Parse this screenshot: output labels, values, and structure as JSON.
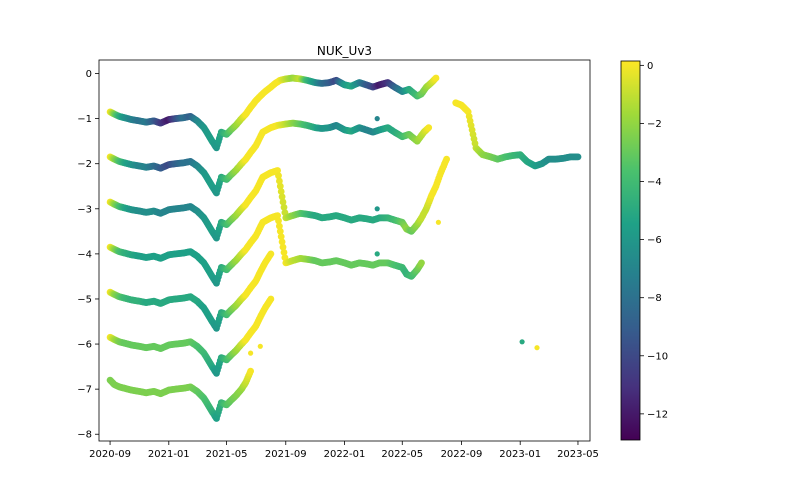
{
  "chart_data": {
    "type": "scatter",
    "title": "NUK_Uv3",
    "xlabel": "",
    "ylabel": "",
    "xlim": [
      "2020-08-09",
      "2023-05-26"
    ],
    "ylim": [
      -8.15,
      0.3
    ],
    "xticks": [
      "2020-09",
      "2021-01",
      "2021-05",
      "2021-09",
      "2022-01",
      "2022-05",
      "2022-09",
      "2023-01",
      "2023-05"
    ],
    "yticks": [
      0,
      -1,
      -2,
      -3,
      -4,
      -5,
      -6,
      -7,
      -8
    ],
    "colormap": "viridis",
    "colorbar": {
      "min": -12.9,
      "max": 0.15,
      "ticks": [
        0,
        -2,
        -4,
        -6,
        -8,
        -10,
        -12
      ]
    },
    "grid": false,
    "legend": "none",
    "series_note_free": true,
    "series": [
      {
        "x": [
          "2020-09-01",
          "2020-09-10",
          "2020-09-20",
          "2020-10-01",
          "2020-10-15",
          "2020-11-01",
          "2020-11-15",
          "2020-12-01",
          "2020-12-15",
          "2021-01-01",
          "2021-01-15",
          "2021-02-01",
          "2021-02-15",
          "2021-03-01",
          "2021-03-15",
          "2021-04-01",
          "2021-04-10",
          "2021-04-20",
          "2021-05-01",
          "2021-05-10",
          "2021-05-20",
          "2021-06-01",
          "2021-06-10",
          "2021-06-20",
          "2021-07-01",
          "2021-07-10",
          "2021-07-20",
          "2021-08-01",
          "2021-08-10",
          "2021-08-20",
          "2021-09-01",
          "2021-09-15",
          "2021-10-01",
          "2021-10-15",
          "2021-11-01",
          "2021-11-15",
          "2021-12-01",
          "2021-12-15",
          "2022-01-01",
          "2022-01-15",
          "2022-02-01",
          "2022-02-15",
          "2022-03-01",
          "2022-03-15",
          "2022-04-01",
          "2022-04-15",
          "2022-05-01",
          "2022-05-15",
          "2022-06-01",
          "2022-06-10",
          "2022-06-20",
          "2022-07-01",
          "2022-07-10"
        ],
        "y": [
          -0.85,
          -0.9,
          -0.95,
          -0.98,
          -1.02,
          -1.05,
          -1.08,
          -1.05,
          -1.1,
          -1.02,
          -1.0,
          -0.98,
          -0.95,
          -1.05,
          -1.2,
          -1.5,
          -1.65,
          -1.3,
          -1.35,
          -1.25,
          -1.15,
          -1.0,
          -0.9,
          -0.75,
          -0.6,
          -0.5,
          -0.4,
          -0.3,
          -0.22,
          -0.15,
          -0.12,
          -0.1,
          -0.12,
          -0.15,
          -0.2,
          -0.22,
          -0.2,
          -0.15,
          -0.25,
          -0.28,
          -0.2,
          -0.25,
          -0.3,
          -0.25,
          -0.2,
          -0.3,
          -0.4,
          -0.35,
          -0.5,
          -0.45,
          -0.3,
          -0.2,
          -0.1
        ],
        "c": [
          0,
          -2.5,
          -4.5,
          -6,
          -7,
          -8,
          -7.5,
          -9,
          -10.5,
          -12,
          -10,
          -8,
          -9,
          -7,
          -6,
          -5.5,
          -6,
          -5,
          -4,
          -3,
          -2,
          -1,
          0,
          0,
          0,
          0,
          0,
          0,
          0,
          0,
          -1,
          -2,
          -1,
          -4,
          -6,
          -8,
          -9,
          -10,
          -6,
          -5,
          -7,
          -9,
          -10,
          -12,
          -11,
          -9,
          -7,
          -5,
          -4,
          -3,
          -2,
          -1,
          0
        ]
      },
      {
        "x": [
          "2020-09-01",
          "2020-09-10",
          "2020-09-20",
          "2020-10-01",
          "2020-10-15",
          "2020-11-01",
          "2020-11-15",
          "2020-12-01",
          "2020-12-15",
          "2021-01-01",
          "2021-01-15",
          "2021-02-01",
          "2021-02-15",
          "2021-03-01",
          "2021-03-15",
          "2021-04-01",
          "2021-04-10",
          "2021-04-20",
          "2021-05-01",
          "2021-05-10",
          "2021-05-20",
          "2021-06-01",
          "2021-06-10",
          "2021-06-20",
          "2021-07-01",
          "2021-07-15",
          "2021-08-01",
          "2021-08-15",
          "2021-09-01",
          "2021-09-15",
          "2021-10-01",
          "2021-10-15",
          "2021-11-01",
          "2021-11-15",
          "2021-12-01",
          "2021-12-15",
          "2022-01-01",
          "2022-01-15",
          "2022-02-01",
          "2022-02-15",
          "2022-03-01",
          "2022-03-15",
          "2022-04-01",
          "2022-04-15",
          "2022-05-01",
          "2022-05-15",
          "2022-06-01",
          "2022-06-15",
          "2022-06-25"
        ],
        "y": [
          -1.85,
          -1.9,
          -1.95,
          -1.98,
          -2.02,
          -2.05,
          -2.08,
          -2.05,
          -2.1,
          -2.02,
          -2.0,
          -1.98,
          -1.95,
          -2.05,
          -2.2,
          -2.5,
          -2.65,
          -2.3,
          -2.35,
          -2.25,
          -2.15,
          -2.0,
          -1.9,
          -1.75,
          -1.6,
          -1.3,
          -1.2,
          -1.15,
          -1.12,
          -1.1,
          -1.12,
          -1.15,
          -1.2,
          -1.22,
          -1.2,
          -1.15,
          -1.25,
          -1.28,
          -1.2,
          -1.25,
          -1.3,
          -1.25,
          -1.2,
          -1.3,
          -1.4,
          -1.35,
          -1.5,
          -1.3,
          -1.2
        ],
        "c": [
          0,
          -2,
          -3.5,
          -5,
          -6,
          -7,
          -7,
          -8,
          -9,
          -10,
          -9,
          -8,
          -8,
          -7,
          -6,
          -5.5,
          -6,
          -5,
          -4,
          -3,
          -2,
          -1,
          0,
          0,
          0,
          0,
          0,
          0,
          -1,
          -2,
          -3,
          -4,
          -5,
          -6,
          -6,
          -7,
          -6,
          -5,
          -6,
          -7,
          -7,
          -6,
          -5,
          -5,
          -4,
          -3,
          -2,
          -1,
          0
        ]
      },
      {
        "x": [
          "2020-09-01",
          "2020-09-10",
          "2020-09-20",
          "2020-10-01",
          "2020-10-15",
          "2020-11-01",
          "2020-11-15",
          "2020-12-01",
          "2020-12-15",
          "2021-01-01",
          "2021-01-15",
          "2021-02-01",
          "2021-02-15",
          "2021-03-01",
          "2021-03-15",
          "2021-04-01",
          "2021-04-10",
          "2021-04-20",
          "2021-05-01",
          "2021-05-10",
          "2021-05-20",
          "2021-06-01",
          "2021-06-10",
          "2021-06-20",
          "2021-07-01",
          "2021-07-15",
          "2021-08-01",
          "2021-08-15",
          "2021-09-01",
          "2021-09-15",
          "2021-10-01",
          "2021-10-15",
          "2021-11-01",
          "2021-11-15",
          "2021-12-01",
          "2021-12-15",
          "2022-01-01",
          "2022-01-15",
          "2022-02-01",
          "2022-02-15",
          "2022-03-01",
          "2022-03-15",
          "2022-04-01",
          "2022-04-15",
          "2022-05-01",
          "2022-05-10",
          "2022-05-20",
          "2022-06-01",
          "2022-06-10",
          "2022-06-20",
          "2022-07-01",
          "2022-07-10",
          "2022-07-20",
          "2022-08-01"
        ],
        "y": [
          -2.85,
          -2.9,
          -2.95,
          -2.98,
          -3.02,
          -3.05,
          -3.08,
          -3.05,
          -3.1,
          -3.02,
          -3.0,
          -2.98,
          -2.95,
          -3.05,
          -3.2,
          -3.5,
          -3.65,
          -3.3,
          -3.35,
          -3.25,
          -3.15,
          -3.0,
          -2.9,
          -2.75,
          -2.6,
          -2.3,
          -2.2,
          -2.15,
          -3.2,
          -3.15,
          -3.1,
          -3.12,
          -3.15,
          -3.2,
          -3.18,
          -3.15,
          -3.2,
          -3.25,
          -3.2,
          -3.22,
          -3.25,
          -3.2,
          -3.2,
          -3.25,
          -3.3,
          -3.45,
          -3.5,
          -3.35,
          -3.2,
          -3.0,
          -2.7,
          -2.5,
          -2.2,
          -1.9
        ],
        "c": [
          0,
          -2,
          -3.5,
          -5,
          -6,
          -6.5,
          -6.5,
          -6.5,
          -7,
          -7,
          -7,
          -7,
          -7,
          -6.5,
          -6,
          -5.5,
          -6,
          -5,
          -4,
          -3,
          -2,
          -1,
          0,
          0,
          0,
          0,
          0,
          0,
          -1,
          -2,
          -3,
          -4,
          -5,
          -5,
          -5,
          -5,
          -5,
          -5,
          -5,
          -5,
          -5,
          -5,
          -4.5,
          -4,
          -3,
          -2,
          -3,
          -2,
          -1,
          -1,
          0,
          0,
          0,
          0
        ]
      },
      {
        "x": [
          "2020-09-01",
          "2020-09-10",
          "2020-09-20",
          "2020-10-01",
          "2020-10-15",
          "2020-11-01",
          "2020-11-15",
          "2020-12-01",
          "2020-12-15",
          "2021-01-01",
          "2021-01-15",
          "2021-02-01",
          "2021-02-15",
          "2021-03-01",
          "2021-03-15",
          "2021-04-01",
          "2021-04-10",
          "2021-04-20",
          "2021-05-01",
          "2021-05-10",
          "2021-05-20",
          "2021-06-01",
          "2021-06-10",
          "2021-06-20",
          "2021-07-01",
          "2021-07-15",
          "2021-08-01",
          "2021-08-15",
          "2021-09-01",
          "2021-09-15",
          "2021-10-01",
          "2021-10-15",
          "2021-11-01",
          "2021-11-15",
          "2021-12-01",
          "2021-12-15",
          "2022-01-01",
          "2022-01-15",
          "2022-02-01",
          "2022-02-15",
          "2022-03-01",
          "2022-03-15",
          "2022-04-01",
          "2022-04-15",
          "2022-05-01",
          "2022-05-10",
          "2022-05-20",
          "2022-06-01",
          "2022-06-10"
        ],
        "y": [
          -3.85,
          -3.9,
          -3.95,
          -3.98,
          -4.02,
          -4.05,
          -4.08,
          -4.05,
          -4.1,
          -4.02,
          -4.0,
          -3.98,
          -3.95,
          -4.05,
          -4.2,
          -4.5,
          -4.65,
          -4.3,
          -4.35,
          -4.25,
          -4.15,
          -4.0,
          -3.9,
          -3.75,
          -3.6,
          -3.3,
          -3.2,
          -3.15,
          -4.2,
          -4.15,
          -4.1,
          -4.12,
          -4.15,
          -4.2,
          -4.18,
          -4.15,
          -4.2,
          -4.25,
          -4.2,
          -4.22,
          -4.25,
          -4.2,
          -4.2,
          -4.25,
          -4.3,
          -4.45,
          -4.5,
          -4.35,
          -4.2
        ],
        "c": [
          0,
          -2,
          -3.5,
          -4.5,
          -5,
          -5.5,
          -5.5,
          -5.5,
          -5.5,
          -5.5,
          -5.5,
          -5.5,
          -5.5,
          -5.5,
          -5.5,
          -5.5,
          -6,
          -5,
          -4,
          -3,
          -2,
          -1,
          0,
          0,
          0,
          0,
          0,
          0,
          0,
          -1,
          -1.5,
          -2,
          -3,
          -3,
          -3,
          -3,
          -3,
          -3,
          -3,
          -3,
          -3,
          -3,
          -3,
          -3.5,
          -4,
          -4.5,
          -4,
          -3,
          -2
        ]
      },
      {
        "x": [
          "2020-09-01",
          "2020-09-10",
          "2020-09-20",
          "2020-10-01",
          "2020-10-15",
          "2020-11-01",
          "2020-11-15",
          "2020-12-01",
          "2020-12-15",
          "2021-01-01",
          "2021-01-15",
          "2021-02-01",
          "2021-02-15",
          "2021-03-01",
          "2021-03-15",
          "2021-04-01",
          "2021-04-10",
          "2021-04-20",
          "2021-05-01",
          "2021-05-10",
          "2021-05-20",
          "2021-06-01",
          "2021-06-10",
          "2021-06-20",
          "2021-07-01",
          "2021-07-10",
          "2021-07-20",
          "2021-08-01"
        ],
        "y": [
          -4.85,
          -4.9,
          -4.95,
          -4.98,
          -5.02,
          -5.05,
          -5.08,
          -5.05,
          -5.1,
          -5.02,
          -5.0,
          -4.98,
          -4.95,
          -5.05,
          -5.2,
          -5.5,
          -5.65,
          -5.3,
          -5.35,
          -5.25,
          -5.15,
          -5.0,
          -4.9,
          -4.75,
          -4.6,
          -4.4,
          -4.2,
          -4.0
        ],
        "c": [
          0,
          -2,
          -3,
          -4,
          -4.5,
          -4.5,
          -5,
          -5,
          -5,
          -5,
          -5,
          -5,
          -5,
          -5,
          -5.5,
          -5.5,
          -6,
          -5,
          -4,
          -3,
          -2,
          -1,
          0,
          0,
          0,
          0,
          0,
          0
        ]
      },
      {
        "x": [
          "2020-09-01",
          "2020-09-10",
          "2020-09-20",
          "2020-10-01",
          "2020-10-15",
          "2020-11-01",
          "2020-11-15",
          "2020-12-01",
          "2020-12-15",
          "2021-01-01",
          "2021-01-15",
          "2021-02-01",
          "2021-02-15",
          "2021-03-01",
          "2021-03-15",
          "2021-04-01",
          "2021-04-10",
          "2021-04-20",
          "2021-05-01",
          "2021-05-10",
          "2021-05-20",
          "2021-06-01",
          "2021-06-10",
          "2021-06-20",
          "2021-07-01",
          "2021-07-10",
          "2021-07-20",
          "2021-08-01"
        ],
        "y": [
          -5.85,
          -5.9,
          -5.95,
          -5.98,
          -6.02,
          -6.05,
          -6.08,
          -6.05,
          -6.1,
          -6.02,
          -6.0,
          -5.98,
          -5.95,
          -6.05,
          -6.2,
          -6.5,
          -6.65,
          -6.3,
          -6.35,
          -6.25,
          -6.15,
          -6.0,
          -5.9,
          -5.75,
          -5.6,
          -5.4,
          -5.2,
          -5.0
        ],
        "c": [
          0,
          -1.5,
          -2.5,
          -3,
          -3,
          -3,
          -3,
          -3,
          -3,
          -3,
          -3,
          -3,
          -3,
          -3.5,
          -4,
          -5,
          -6,
          -5,
          -4,
          -3,
          -2,
          -1,
          0,
          0,
          0,
          0,
          0,
          0
        ]
      },
      {
        "x": [
          "2020-09-01",
          "2020-09-10",
          "2020-09-20",
          "2020-10-01",
          "2020-10-15",
          "2020-11-01",
          "2020-11-15",
          "2020-12-01",
          "2020-12-15",
          "2021-01-01",
          "2021-01-15",
          "2021-02-01",
          "2021-02-15",
          "2021-03-01",
          "2021-03-15",
          "2021-04-01",
          "2021-04-10",
          "2021-04-20",
          "2021-05-01",
          "2021-05-10",
          "2021-05-20",
          "2021-06-01",
          "2021-06-10",
          "2021-06-20"
        ],
        "y": [
          -6.8,
          -6.9,
          -6.95,
          -6.98,
          -7.02,
          -7.05,
          -7.08,
          -7.05,
          -7.1,
          -7.02,
          -7.0,
          -6.98,
          -6.95,
          -7.05,
          -7.2,
          -7.5,
          -7.65,
          -7.3,
          -7.35,
          -7.25,
          -7.15,
          -7.0,
          -6.85,
          -6.6
        ],
        "c": [
          -2.5,
          -2.5,
          -2.5,
          -2.5,
          -2.5,
          -2.5,
          -2.5,
          -2.5,
          -2.5,
          -2.5,
          -2.5,
          -2.5,
          -2.5,
          -3,
          -3.5,
          -4.5,
          -5.5,
          -4.5,
          -3.5,
          -3,
          -2.5,
          -2,
          -1,
          0
        ]
      },
      {
        "x": [
          "2022-08-20",
          "2022-09-01",
          "2022-09-15",
          "2022-10-01",
          "2022-10-15",
          "2022-11-01",
          "2022-11-15",
          "2022-12-01",
          "2022-12-15",
          "2023-01-01",
          "2023-01-15",
          "2023-02-01",
          "2023-02-15",
          "2023-03-01",
          "2023-03-15",
          "2023-04-01",
          "2023-04-15",
          "2023-05-01"
        ],
        "y": [
          -0.65,
          -0.7,
          -0.85,
          -1.65,
          -1.8,
          -1.85,
          -1.9,
          -1.85,
          -1.82,
          -1.8,
          -1.95,
          -2.05,
          -2.0,
          -1.9,
          -1.9,
          -1.88,
          -1.85,
          -1.85
        ],
        "c": [
          0,
          0,
          0,
          -1,
          -2,
          -2.5,
          -3,
          -3.5,
          -4,
          -4.5,
          -5,
          -5.5,
          -6,
          -6.5,
          -6.5,
          -6.5,
          -6.5,
          -6.5
        ]
      }
    ],
    "outliers": {
      "x": [
        "2022-03-10",
        "2022-03-10",
        "2022-03-10",
        "2021-06-20",
        "2021-07-10",
        "2022-07-15",
        "2023-01-05",
        "2023-02-05"
      ],
      "y": [
        -1.0,
        -3.0,
        -4.0,
        -6.2,
        -6.05,
        -3.3,
        -5.95,
        -6.08
      ],
      "c": [
        -7,
        -6,
        -5,
        0,
        0,
        0,
        -5,
        0
      ]
    }
  }
}
